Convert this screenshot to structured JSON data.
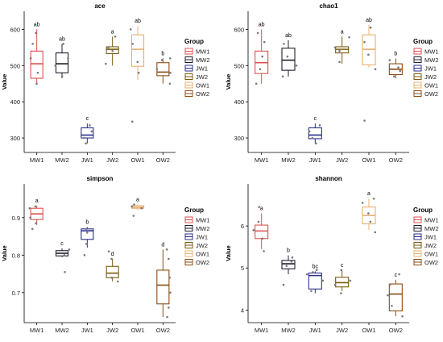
{
  "colors": {
    "MW1": "#d9534f",
    "MW2": "#1f1f2e",
    "JW1": "#2b2f8a",
    "JW2": "#7a5a10",
    "OW1": "#e8b070",
    "OW2": "#8b4c14",
    "axis": "#000000",
    "point": "#7a7a7a"
  },
  "legend": {
    "title": "Group",
    "items": [
      "MW1",
      "MW2",
      "JW1",
      "JW2",
      "OW1",
      "OW2"
    ]
  },
  "chart_data": [
    {
      "type": "box",
      "title": "ace",
      "ylabel": "Value",
      "xlabel": "",
      "categories": [
        "MW1",
        "MW2",
        "JW1",
        "JW2",
        "OW1",
        "OW2"
      ],
      "ylim": [
        260,
        650
      ],
      "yticks": [
        300,
        400,
        500,
        600
      ],
      "legend_position": "right",
      "boxes": [
        {
          "group": "MW1",
          "min": 450,
          "q1": 465,
          "median": 505,
          "q3": 540,
          "max": 600,
          "label": "ab"
        },
        {
          "group": "MW2",
          "min": 465,
          "q1": 480,
          "median": 505,
          "q3": 535,
          "max": 560,
          "label": "ab"
        },
        {
          "group": "JW1",
          "min": 285,
          "q1": 300,
          "median": 308,
          "q3": 328,
          "max": 340,
          "label": "c"
        },
        {
          "group": "JW2",
          "min": 500,
          "q1": 533,
          "median": 545,
          "q3": 552,
          "max": 580,
          "label": "a"
        },
        {
          "group": "OW1",
          "min": 460,
          "q1": 498,
          "median": 545,
          "q3": 585,
          "max": 610,
          "label": "ab"
        },
        {
          "group": "OW2",
          "min": 450,
          "q1": 472,
          "median": 482,
          "q3": 508,
          "max": 520,
          "label": "b"
        }
      ],
      "points": {
        "MW1": [
          450,
          480,
          520,
          560,
          590
        ],
        "MW2": [
          470,
          500,
          520,
          560
        ],
        "JW1": [
          285,
          300,
          318,
          335
        ],
        "JW2": [
          505,
          540,
          550,
          580
        ],
        "OW1": [
          345,
          480,
          510,
          560,
          600
        ],
        "OW2": [
          450,
          480,
          490,
          515,
          520
        ]
      }
    },
    {
      "type": "box",
      "title": "chao1",
      "ylabel": "Value",
      "xlabel": "",
      "categories": [
        "MW1",
        "MW2",
        "JW1",
        "JW2",
        "OW1",
        "OW2"
      ],
      "ylim": [
        260,
        650
      ],
      "yticks": [
        300,
        400,
        500,
        600
      ],
      "legend_position": "right",
      "boxes": [
        {
          "group": "MW1",
          "min": 450,
          "q1": 478,
          "median": 508,
          "q3": 540,
          "max": 600,
          "label": "ab"
        },
        {
          "group": "MW2",
          "min": 470,
          "q1": 487,
          "median": 515,
          "q3": 548,
          "max": 570,
          "label": "ab"
        },
        {
          "group": "JW1",
          "min": 285,
          "q1": 298,
          "median": 308,
          "q3": 328,
          "max": 340,
          "label": "c"
        },
        {
          "group": "JW2",
          "min": 505,
          "q1": 535,
          "median": 545,
          "q3": 552,
          "max": 580,
          "label": "a"
        },
        {
          "group": "OW1",
          "min": 495,
          "q1": 502,
          "median": 545,
          "q3": 585,
          "max": 612,
          "label": "ab"
        },
        {
          "group": "OW2",
          "min": 465,
          "q1": 475,
          "median": 490,
          "q3": 505,
          "max": 520,
          "label": "b"
        }
      ],
      "points": {
        "MW1": [
          450,
          490,
          525,
          565,
          590
        ],
        "MW2": [
          470,
          500,
          525,
          560
        ],
        "JW1": [
          285,
          300,
          318,
          335
        ],
        "JW2": [
          510,
          540,
          550,
          578
        ],
        "OW1": [
          348,
          490,
          530,
          565,
          605
        ],
        "OW2": [
          470,
          485,
          495,
          515
        ]
      }
    },
    {
      "type": "box",
      "title": "simpson",
      "ylabel": "Value",
      "xlabel": "",
      "categories": [
        "MW1",
        "MW2",
        "JW1",
        "JW2",
        "OW1",
        "OW2"
      ],
      "ylim": [
        0.62,
        0.99
      ],
      "yticks": [
        0.7,
        0.8,
        0.9
      ],
      "legend_position": "right",
      "boxes": [
        {
          "group": "MW1",
          "min": 0.88,
          "q1": 0.895,
          "median": 0.91,
          "q3": 0.925,
          "max": 0.932,
          "label": "a"
        },
        {
          "group": "MW2",
          "min": 0.795,
          "q1": 0.798,
          "median": 0.805,
          "q3": 0.812,
          "max": 0.818,
          "label": "c"
        },
        {
          "group": "JW1",
          "min": 0.82,
          "q1": 0.842,
          "median": 0.865,
          "q3": 0.87,
          "max": 0.875,
          "label": "b"
        },
        {
          "group": "JW2",
          "min": 0.73,
          "q1": 0.74,
          "median": 0.752,
          "q3": 0.77,
          "max": 0.79,
          "label": "d"
        },
        {
          "group": "OW1",
          "min": 0.92,
          "q1": 0.925,
          "median": 0.928,
          "q3": 0.932,
          "max": 0.935,
          "label": "a"
        },
        {
          "group": "OW2",
          "min": 0.635,
          "q1": 0.67,
          "median": 0.72,
          "q3": 0.76,
          "max": 0.815,
          "label": "d"
        }
      ],
      "points": {
        "MW1": [
          0.87,
          0.885,
          0.9,
          0.925,
          0.93
        ],
        "MW2": [
          0.755,
          0.8,
          0.815
        ],
        "JW1": [
          0.8,
          0.83,
          0.86,
          0.87
        ],
        "JW2": [
          0.73,
          0.74,
          0.79,
          0.81
        ],
        "OW1": [
          0.905,
          0.925,
          0.93,
          0.935
        ],
        "OW2": [
          0.635,
          0.66,
          0.7,
          0.74,
          0.79,
          0.815
        ]
      }
    },
    {
      "type": "box",
      "title": "shannon",
      "ylabel": "Value",
      "xlabel": "",
      "categories": [
        "MW1",
        "MW2",
        "JW1",
        "JW2",
        "OW1",
        "OW2"
      ],
      "ylim": [
        3.7,
        7.0
      ],
      "yticks": [
        4,
        5,
        6
      ],
      "legend_position": "right",
      "boxes": [
        {
          "group": "MW1",
          "min": 5.45,
          "q1": 5.7,
          "median": 5.88,
          "q3": 6.02,
          "max": 6.3,
          "label": "a"
        },
        {
          "group": "MW2",
          "min": 4.85,
          "q1": 4.98,
          "median": 5.1,
          "q3": 5.18,
          "max": 5.3,
          "label": "b"
        },
        {
          "group": "JW1",
          "min": 4.4,
          "q1": 4.5,
          "median": 4.82,
          "q3": 4.88,
          "max": 4.92,
          "label": "bc"
        },
        {
          "group": "JW2",
          "min": 4.45,
          "q1": 4.55,
          "median": 4.65,
          "q3": 4.78,
          "max": 4.95,
          "label": "c"
        },
        {
          "group": "OW1",
          "min": 5.9,
          "q1": 6.05,
          "median": 6.25,
          "q3": 6.45,
          "max": 6.65,
          "label": "a"
        },
        {
          "group": "OW2",
          "min": 3.85,
          "q1": 3.98,
          "median": 4.38,
          "q3": 4.62,
          "max": 4.72,
          "label": "c"
        }
      ],
      "points": {
        "MW1": [
          5.4,
          5.7,
          5.9,
          6.1,
          6.45
        ],
        "MW2": [
          4.6,
          5.05,
          5.15,
          5.25
        ],
        "JW1": [
          4.45,
          4.7,
          4.85,
          4.9,
          4.95
        ],
        "JW2": [
          4.4,
          4.6,
          4.7,
          4.95
        ],
        "OW1": [
          5.85,
          6.1,
          6.3,
          6.55,
          6.65
        ],
        "OW2": [
          3.85,
          4.1,
          4.35,
          4.6,
          4.85
        ]
      }
    }
  ]
}
